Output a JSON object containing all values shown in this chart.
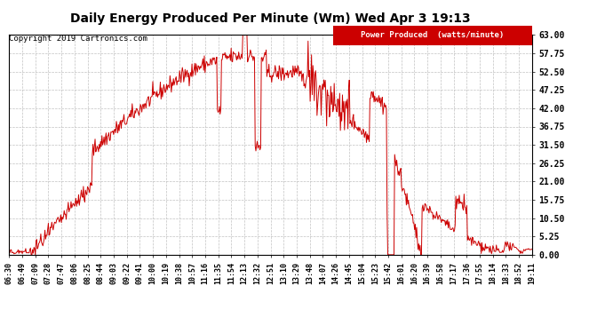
{
  "title": "Daily Energy Produced Per Minute (Wm) Wed Apr 3 19:13",
  "copyright": "Copyright 2019 Cartronics.com",
  "legend_label": "Power Produced  (watts/minute)",
  "legend_bg": "#cc0000",
  "legend_text_color": "#ffffff",
  "line_color": "#cc0000",
  "bg_color": "#ffffff",
  "plot_bg_color": "#ffffff",
  "grid_color": "#bbbbbb",
  "title_color": "#000000",
  "yticks": [
    0.0,
    5.25,
    10.5,
    15.75,
    21.0,
    26.25,
    31.5,
    36.75,
    42.0,
    47.25,
    52.5,
    57.75,
    63.0
  ],
  "xtick_labels": [
    "06:30",
    "06:49",
    "07:09",
    "07:28",
    "07:47",
    "08:06",
    "08:25",
    "08:44",
    "09:03",
    "09:22",
    "09:41",
    "10:00",
    "10:19",
    "10:38",
    "10:57",
    "11:16",
    "11:35",
    "11:54",
    "12:13",
    "12:32",
    "12:51",
    "13:10",
    "13:29",
    "13:48",
    "14:07",
    "14:26",
    "14:45",
    "15:04",
    "15:23",
    "15:42",
    "16:01",
    "16:20",
    "16:39",
    "16:58",
    "17:17",
    "17:36",
    "17:55",
    "18:14",
    "18:33",
    "18:52",
    "19:11"
  ],
  "ymin": 0.0,
  "ymax": 63.0,
  "figwidth": 6.9,
  "figheight": 3.75,
  "dpi": 100
}
